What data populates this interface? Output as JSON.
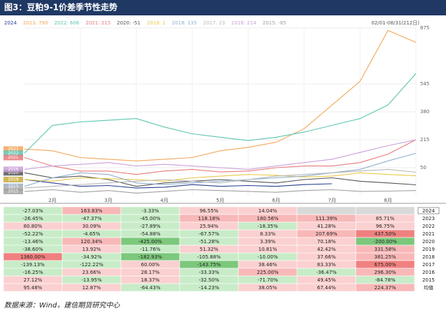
{
  "header": {
    "title": "图3：豆粕9-1价差季节性走势"
  },
  "chart_data": {
    "type": "line",
    "date_range": "02/01-08/31(212日)",
    "categories": [
      null,
      "2月",
      null,
      "3月",
      null,
      "4月",
      null,
      "5月",
      null,
      "6月",
      null,
      "7月",
      null,
      "8月",
      null
    ],
    "ylim": [
      -115,
      875
    ],
    "yticks": [
      50,
      215,
      380,
      545,
      875
    ],
    "grid": true,
    "series": [
      {
        "name": "2024",
        "tag": "2024",
        "color": "#2a3f8f",
        "values": [
          -20,
          -40,
          -60,
          -55,
          -70,
          -65,
          -50,
          -60,
          -55,
          -60,
          -50,
          -45,
          null,
          null,
          null
        ]
      },
      {
        "name": "2023: 790",
        "tag": "2023",
        "color": "#f2a65a",
        "values": [
          160,
          150,
          110,
          100,
          90,
          100,
          110,
          150,
          170,
          200,
          280,
          420,
          560,
          860,
          790
        ]
      },
      {
        "name": "2022: 606",
        "tag": "2022",
        "color": "#5cc6b0",
        "values": [
          135,
          300,
          320,
          330,
          340,
          290,
          250,
          230,
          210,
          230,
          260,
          300,
          340,
          420,
          606
        ]
      },
      {
        "name": "2021: 215",
        "tag": "2021",
        "color": "#e87a7a",
        "values": [
          110,
          60,
          30,
          30,
          10,
          30,
          40,
          25,
          30,
          50,
          60,
          60,
          80,
          130,
          215
        ]
      },
      {
        "name": "2020: -51",
        "tag": "2020",
        "color": "#555555",
        "values": [
          20,
          -10,
          0,
          -20,
          -60,
          -40,
          -30,
          -20,
          -30,
          -40,
          -20,
          -10,
          -30,
          -40,
          -51
        ]
      },
      {
        "name": "2019: 2",
        "tag": "2019",
        "color": "#e8c84a",
        "values": [
          -20,
          -30,
          -10,
          -15,
          -20,
          -30,
          -10,
          0,
          10,
          5,
          -5,
          0,
          20,
          10,
          2
        ]
      },
      {
        "name": "2018: 135",
        "tag": "2018",
        "color": "#8fb0cf",
        "values": [
          -60,
          -10,
          20,
          10,
          -40,
          -50,
          -40,
          -30,
          -20,
          -10,
          0,
          20,
          40,
          90,
          135
        ]
      },
      {
        "name": "2017: 23",
        "tag": "2017",
        "color": "#b8b8b8",
        "values": [
          -70,
          -60,
          -50,
          -40,
          -30,
          -20,
          -30,
          -40,
          -20,
          0,
          10,
          20,
          30,
          40,
          23
        ]
      },
      {
        "name": "2016: 214",
        "tag": "2016",
        "color": "#c9a0d8",
        "values": [
          40,
          60,
          70,
          80,
          60,
          70,
          60,
          50,
          40,
          60,
          80,
          100,
          140,
          180,
          214
        ]
      },
      {
        "name": "2015: -85",
        "tag": "2015",
        "color": "#a0a0a0",
        "values": [
          -90,
          -80,
          -95,
          -85,
          -100,
          -90,
          -80,
          -85,
          -90,
          -95,
          -85,
          -80,
          -90,
          -88,
          -85
        ]
      }
    ]
  },
  "table": {
    "rows": [
      {
        "label": "2024",
        "cells": [
          "-27.03%",
          "163.83%",
          "-3.33%",
          "96.55%",
          "14.04%",
          null,
          null
        ]
      },
      {
        "label": "2023",
        "cells": [
          "-26.45%",
          "-47.37%",
          "-45.00%",
          "118.18%",
          "180.56%",
          "111.39%",
          "85.71%"
        ]
      },
      {
        "label": "2022",
        "cells": [
          "80.80%",
          "30.09%",
          "-27.89%",
          "25.94%",
          "-18.35%",
          "41.28%",
          "96.75%"
        ]
      },
      {
        "label": "2021",
        "cells": [
          "-52.22%",
          "-4.65%",
          "-54.88%",
          "-67.57%",
          "8.33%",
          "207.69%",
          "437.50%"
        ]
      },
      {
        "label": "2020",
        "cells": [
          "-13.46%",
          "120.34%",
          "-425.00%",
          "-51.28%",
          "3.39%",
          "70.18%",
          "-200.00%"
        ]
      },
      {
        "label": "2019",
        "cells": [
          "-38.60%",
          "13.92%",
          "-11.76%",
          "51.32%",
          "10.81%",
          "42.42%",
          "331.58%"
        ]
      },
      {
        "label": "2018",
        "cells": [
          "1360.00%",
          "-34.92%",
          "-182.93%",
          "-105.88%",
          "-10.00%",
          "37.66%",
          "381.25%"
        ]
      },
      {
        "label": "2017",
        "cells": [
          "-139.13%",
          "-122.22%",
          "60.00%",
          "-143.75%",
          "38.46%",
          "83.33%",
          "675.00%"
        ]
      },
      {
        "label": "2016",
        "cells": [
          "-16.25%",
          "23.66%",
          "28.17%",
          "-33.33%",
          "225.00%",
          "-36.47%",
          "296.30%"
        ]
      },
      {
        "label": "2015",
        "cells": [
          "27.12%",
          "-13.95%",
          "18.37%",
          "-32.50%",
          "-71.70%",
          "49.45%",
          "-84.78%"
        ]
      },
      {
        "label": "均值",
        "cells": [
          "95.48%",
          "12.87%",
          "-64.43%",
          "-14.23%",
          "38.05%",
          "67.44%",
          "224.37%"
        ]
      }
    ]
  },
  "footer": {
    "source": "数据来源：Wind，建信期货研究中心"
  }
}
